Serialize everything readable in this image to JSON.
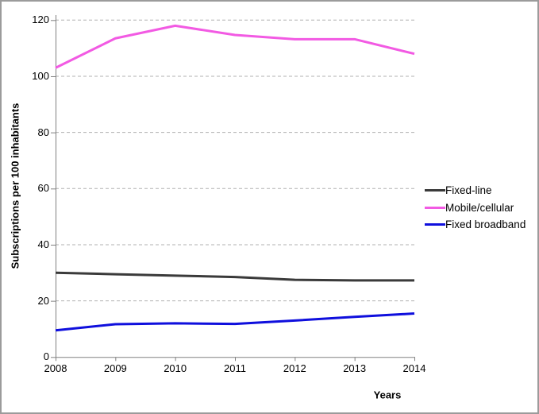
{
  "chart_data": {
    "type": "line",
    "title": "",
    "xlabel": "Years",
    "ylabel": "Subscriptions per 100 inhabitants",
    "x": [
      2008,
      2009,
      2010,
      2011,
      2012,
      2013,
      2014
    ],
    "series": [
      {
        "name": "Fixed-line",
        "color": "#3a3a3a",
        "values": [
          30,
          29.5,
          29,
          28.5,
          27.5,
          27.3,
          27.3
        ]
      },
      {
        "name": "Mobile/cellular",
        "color": "#f25ae3",
        "values": [
          103,
          113.5,
          118,
          114.7,
          113.2,
          113.2,
          108
        ]
      },
      {
        "name": "Fixed broadband",
        "color": "#0f0fdd",
        "values": [
          9.5,
          11.7,
          12,
          11.8,
          13,
          14.3,
          15.5
        ]
      }
    ],
    "ylim": [
      0,
      120
    ],
    "ytick_step": 20,
    "yticks": [
      0,
      20,
      40,
      60,
      80,
      100,
      120
    ],
    "grid": "horizontal-dashed",
    "legend_position": "right-middle"
  },
  "colors": {
    "background": "#ffffff",
    "frame_border": "#9b9b9b",
    "axis": "#808080",
    "gridline": "#b0b0b0",
    "text": "#000000"
  }
}
